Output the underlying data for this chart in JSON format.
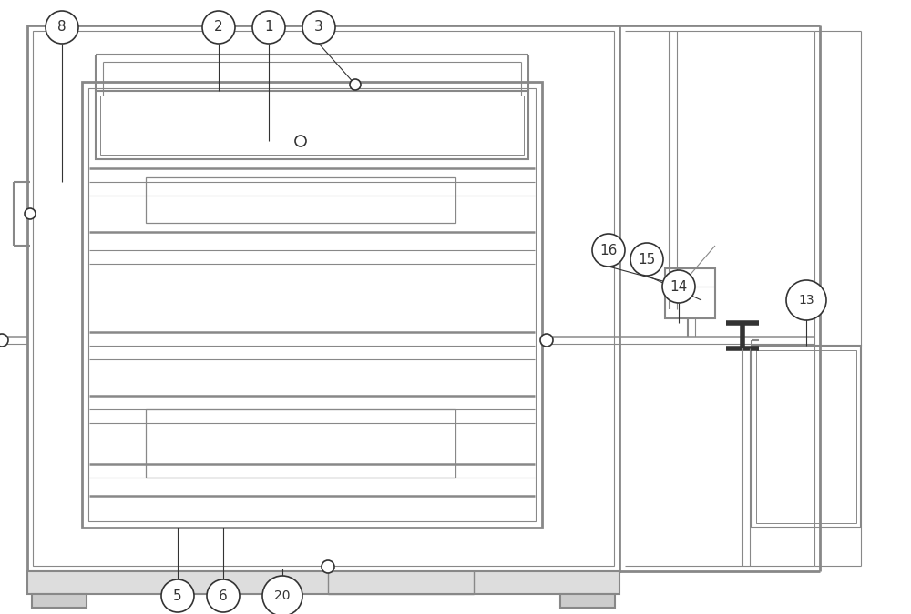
{
  "bg_color": "#ffffff",
  "lc": "#888888",
  "dc": "#333333",
  "fig_width": 10.0,
  "fig_height": 6.75
}
